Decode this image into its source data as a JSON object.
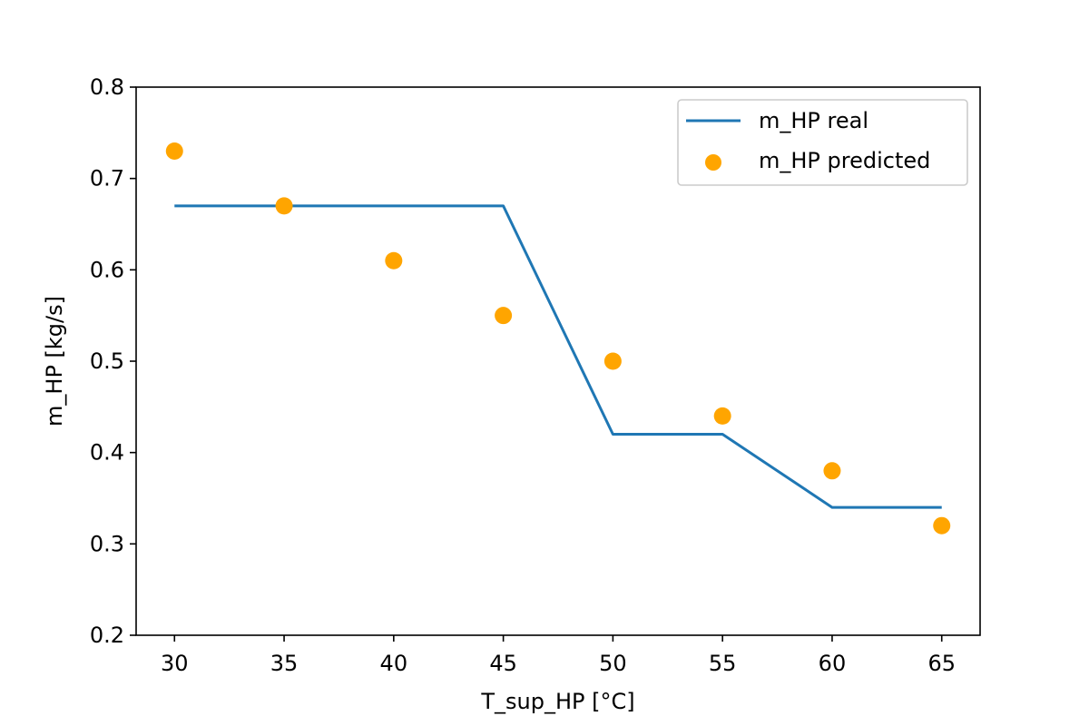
{
  "chart_data": {
    "type": "line",
    "xlabel": "T_sup_HP [°C]",
    "ylabel": "m_HP [kg/s]",
    "xlim": [
      28.25,
      66.75
    ],
    "ylim": [
      0.2,
      0.8
    ],
    "x_ticks": [
      30,
      35,
      40,
      45,
      50,
      55,
      60,
      65
    ],
    "y_ticks": [
      0.2,
      0.3,
      0.4,
      0.5,
      0.6,
      0.7,
      0.8
    ],
    "grid": false,
    "legend_position": "upper right",
    "series": [
      {
        "name": "m_HP real",
        "kind": "line",
        "color": "#1f77b4",
        "x": [
          30,
          35,
          40,
          45,
          50,
          55,
          60,
          65
        ],
        "y": [
          0.67,
          0.67,
          0.67,
          0.67,
          0.42,
          0.42,
          0.34,
          0.34
        ]
      },
      {
        "name": "m_HP predicted",
        "kind": "scatter",
        "color": "#ffa500",
        "x": [
          30,
          35,
          40,
          45,
          50,
          55,
          60,
          65
        ],
        "y": [
          0.73,
          0.67,
          0.61,
          0.55,
          0.5,
          0.44,
          0.38,
          0.32
        ]
      }
    ]
  }
}
